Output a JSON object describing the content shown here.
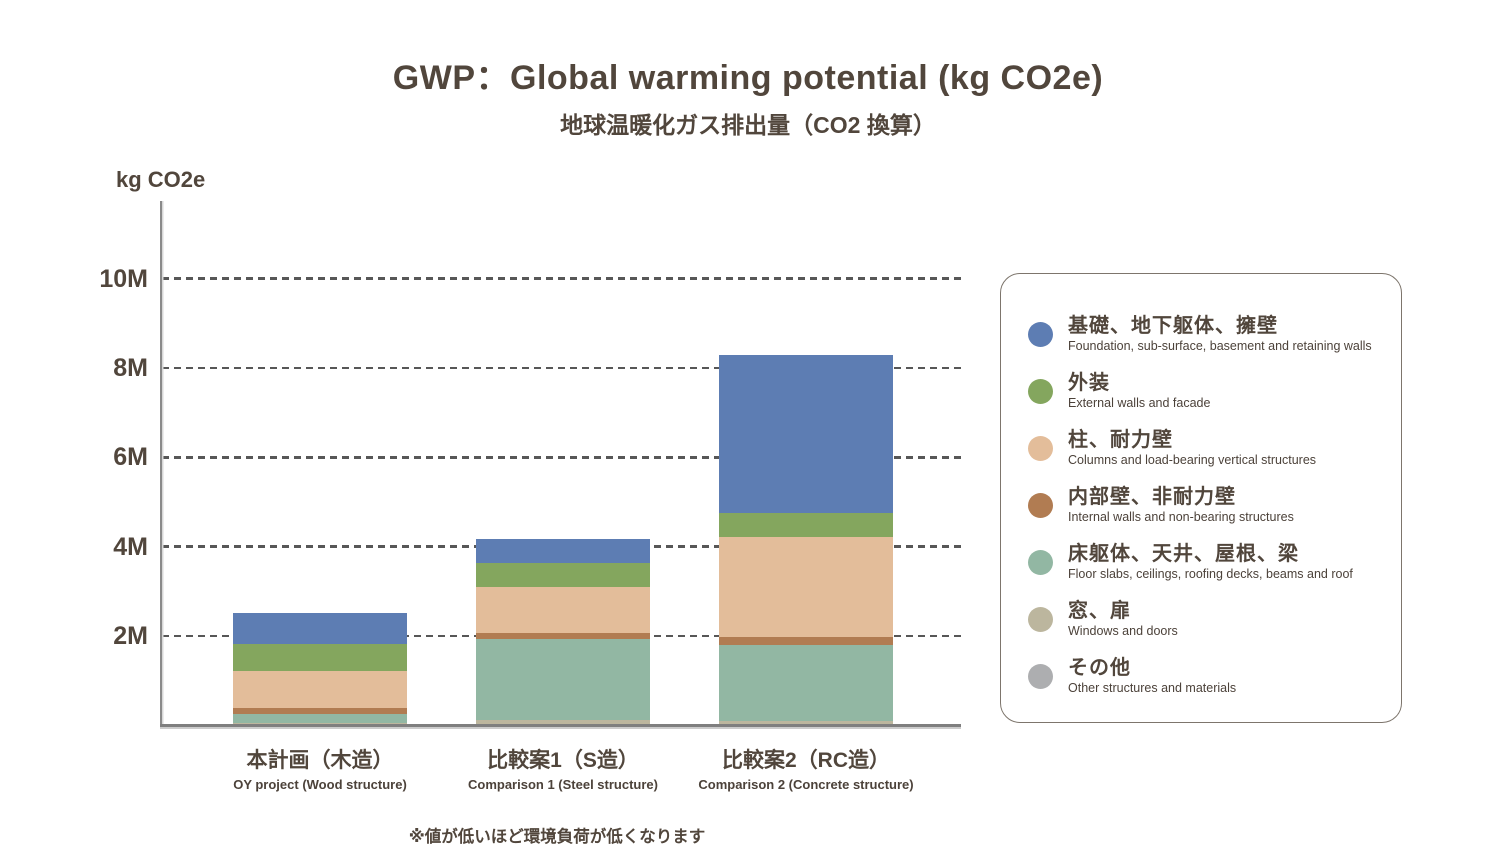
{
  "title": "GWP：Global warming potential (kg CO2e)",
  "subtitle": "地球温暖化ガス排出量（CO2 換算）",
  "y_axis_unit": "kg CO2e",
  "footnote": "※値が低いほど環境負荷が低くなります",
  "colors": {
    "text": "#51463C",
    "axis": "#7f7f7f",
    "gridline": "#575757",
    "legend_border": "#7d756c"
  },
  "chart_data": {
    "type": "bar",
    "stacked": true,
    "title": "GWP：Global warming potential (kg CO2e)",
    "subtitle": "地球温暖化ガス排出量（CO2 換算）",
    "ylabel": "kg CO2e",
    "value_unit": "million kg CO2e",
    "ylim": [
      0,
      11.7
    ],
    "grid": "horizontal-dashed",
    "legend_position": "right",
    "yticks": [
      {
        "value": 2,
        "label": "2M"
      },
      {
        "value": 4,
        "label": "4M"
      },
      {
        "value": 6,
        "label": "6M"
      },
      {
        "value": 8,
        "label": "8M"
      },
      {
        "value": 10,
        "label": "10M"
      }
    ],
    "categories": [
      {
        "jp": "本計画（木造）",
        "en": "OY project (Wood structure)"
      },
      {
        "jp": "比較案1（S造）",
        "en": "Comparison 1 (Steel structure)"
      },
      {
        "jp": "比較案2（RC造）",
        "en": "Comparison 2 (Concrete structure)"
      }
    ],
    "series": [
      {
        "key": "foundation",
        "jp": "基礎、地下躯体、擁壁",
        "en": "Foundation, sub-surface, basement and retaining walls",
        "color": "#5D7DB3",
        "values": [
          0.68,
          0.53,
          3.54
        ]
      },
      {
        "key": "external-walls",
        "jp": "外装",
        "en": "External walls and facade",
        "color": "#84A65E",
        "values": [
          0.61,
          0.54,
          0.55
        ]
      },
      {
        "key": "columns",
        "jp": "柱、耐力壁",
        "en": "Columns and load-bearing vertical structures",
        "color": "#E3BD9A",
        "values": [
          0.83,
          1.02,
          2.24
        ]
      },
      {
        "key": "internal-walls",
        "jp": "内部壁、非耐力壁",
        "en": "Internal walls and non-bearing structures",
        "color": "#B17C52",
        "values": [
          0.13,
          0.14,
          0.17
        ]
      },
      {
        "key": "floor-slabs",
        "jp": "床躯体、天井、屋根、梁",
        "en": "Floor slabs, ceilings, roofing decks, beams and roof",
        "color": "#92B7A3",
        "values": [
          0.21,
          1.82,
          1.7
        ]
      },
      {
        "key": "windows-doors",
        "jp": "窓、扉",
        "en": "Windows and doors",
        "color": "#BCB69E",
        "values": [
          0.05,
          0.12,
          0.1
        ]
      },
      {
        "key": "other",
        "jp": "その他",
        "en": "Other structures and materials",
        "color": "#ADAEB0",
        "values": [
          0,
          0,
          0
        ]
      }
    ],
    "stack_order_bottom_to_top": [
      6,
      5,
      4,
      3,
      2,
      1,
      0
    ],
    "bar_totals": [
      2.51,
      4.17,
      8.3
    ]
  }
}
